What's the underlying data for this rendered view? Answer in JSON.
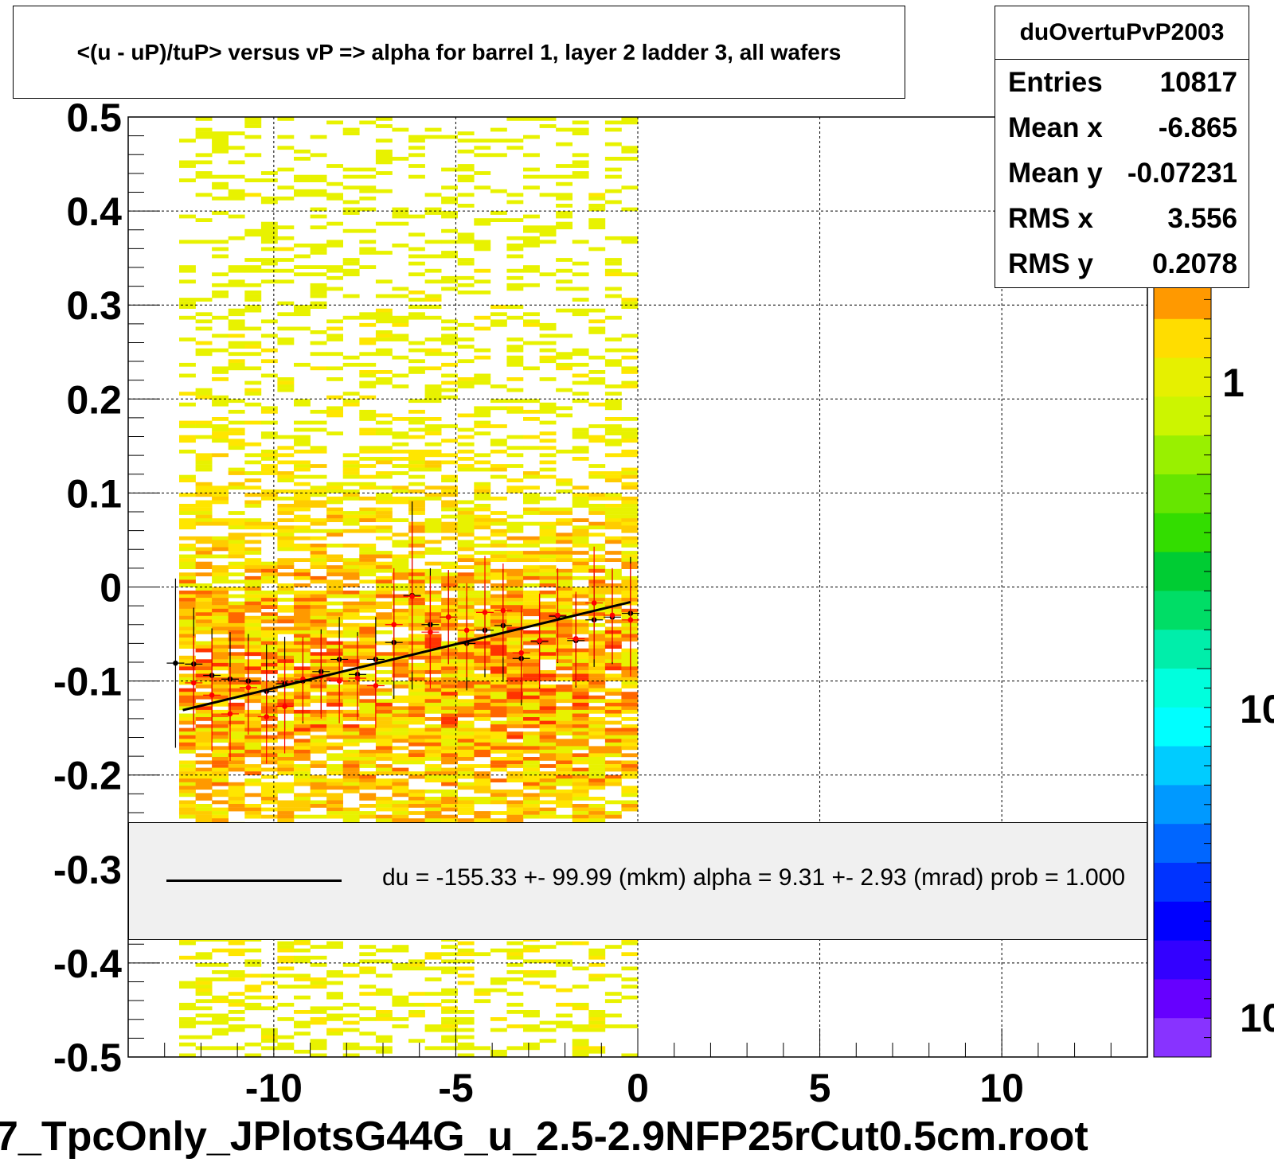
{
  "title": "<(u - uP)/tuP> versus   vP => alpha for barrel 1, layer 2 ladder 3, all wafers",
  "stats": {
    "name": "duOvertuPvP2003",
    "rows": [
      {
        "label": "Entries",
        "value": "10817"
      },
      {
        "label": "Mean x",
        "value": "-6.865"
      },
      {
        "label": "Mean y",
        "value": "-0.07231"
      },
      {
        "label": "RMS x",
        "value": "3.556"
      },
      {
        "label": "RMS y",
        "value": "0.2078"
      }
    ]
  },
  "fit_legend": "du = -155.33 +- 99.99 (mkm) alpha =    9.31 +-  2.93 (mrad) prob = 1.000",
  "file_label": "7_TpcOnly_JPlotsG44G_u_2.5-2.9NFP25rCut0.5cm.root",
  "colors": {
    "background": "#ffffff",
    "frame": "#000000",
    "legend_fill": "#f0f0f0",
    "fit_line": "#000000",
    "profile_black": "#000000",
    "profile_red": "#ff0000"
  },
  "chart_data": {
    "type": "heatmap",
    "xlim": [
      -14,
      14
    ],
    "ylim": [
      -0.5,
      0.5
    ],
    "x_ticks": [
      "-10",
      "-5",
      "0",
      "5",
      "10"
    ],
    "y_ticks": [
      "0.5",
      "0.4",
      "0.3",
      "0.2",
      "0.1",
      "0",
      "-0.1",
      "-0.2",
      "-0.3",
      "-0.4",
      "-0.5"
    ],
    "grid": true,
    "x_data_range": [
      -12.6,
      0
    ],
    "palette_ticks": [
      "1",
      "10",
      "10"
    ],
    "palette_colors": [
      "#ff9900",
      "#ffdd00",
      "#e6f000",
      "#ccf500",
      "#99f000",
      "#66e600",
      "#33dd00",
      "#00cc33",
      "#00dd66",
      "#00eeaa",
      "#00ffdd",
      "#00ffff",
      "#00ccff",
      "#0099ff",
      "#0066ff",
      "#0033ff",
      "#0000ff",
      "#3300ff",
      "#6600ff",
      "#8833ff"
    ],
    "fit": {
      "x": [
        -12.5,
        -0.2
      ],
      "y": [
        -0.131,
        -0.016
      ]
    },
    "profile_black": {
      "x": [
        -12.7,
        -12.2,
        -11.7,
        -11.2,
        -10.7,
        -10.2,
        -9.7,
        -9.2,
        -8.7,
        -8.2,
        -7.7,
        -7.2,
        -6.7,
        -6.2,
        -5.7,
        -5.2,
        -4.7,
        -4.2,
        -3.7,
        -3.2,
        -2.7,
        -2.2,
        -1.7,
        -1.2,
        -0.7,
        -0.2
      ],
      "y": [
        -0.081,
        -0.082,
        -0.094,
        -0.098,
        -0.1,
        -0.111,
        -0.103,
        -0.1,
        -0.09,
        -0.077,
        -0.093,
        -0.077,
        -0.059,
        -0.009,
        -0.04,
        -0.032,
        -0.06,
        -0.046,
        -0.041,
        -0.076,
        -0.058,
        -0.031,
        -0.057,
        -0.035,
        -0.032,
        -0.028
      ],
      "err": [
        0.09,
        0.06,
        0.05,
        0.05,
        0.05,
        0.05,
        0.05,
        0.045,
        0.045,
        0.045,
        0.045,
        0.045,
        0.06,
        0.1,
        0.06,
        0.05,
        0.05,
        0.05,
        0.06,
        0.05,
        0.05,
        0.05,
        0.05,
        0.05,
        0.05,
        0.06
      ]
    },
    "profile_red": {
      "x": [
        -12.2,
        -11.7,
        -11.2,
        -10.7,
        -10.2,
        -9.7,
        -9.2,
        -8.7,
        -8.2,
        -7.7,
        -7.2,
        -6.7,
        -6.2,
        -5.7,
        -5.2,
        -4.7,
        -4.2,
        -3.7,
        -3.2,
        -2.7,
        -2.2,
        -1.7,
        -1.2,
        -0.7,
        -0.2
      ],
      "y": [
        -0.102,
        -0.115,
        -0.135,
        -0.107,
        -0.138,
        -0.127,
        -0.098,
        -0.095,
        -0.1,
        -0.097,
        -0.105,
        -0.04,
        -0.01,
        -0.048,
        -0.032,
        -0.046,
        -0.027,
        -0.025,
        -0.07,
        -0.057,
        -0.03,
        -0.055,
        -0.017,
        -0.03,
        -0.035
      ],
      "err": [
        0.05,
        0.06,
        0.05,
        0.05,
        0.05,
        0.05,
        0.045,
        0.045,
        0.045,
        0.045,
        0.045,
        0.06,
        0.08,
        0.06,
        0.05,
        0.05,
        0.06,
        0.05,
        0.05,
        0.05,
        0.05,
        0.05,
        0.06,
        0.05,
        0.06
      ]
    }
  }
}
